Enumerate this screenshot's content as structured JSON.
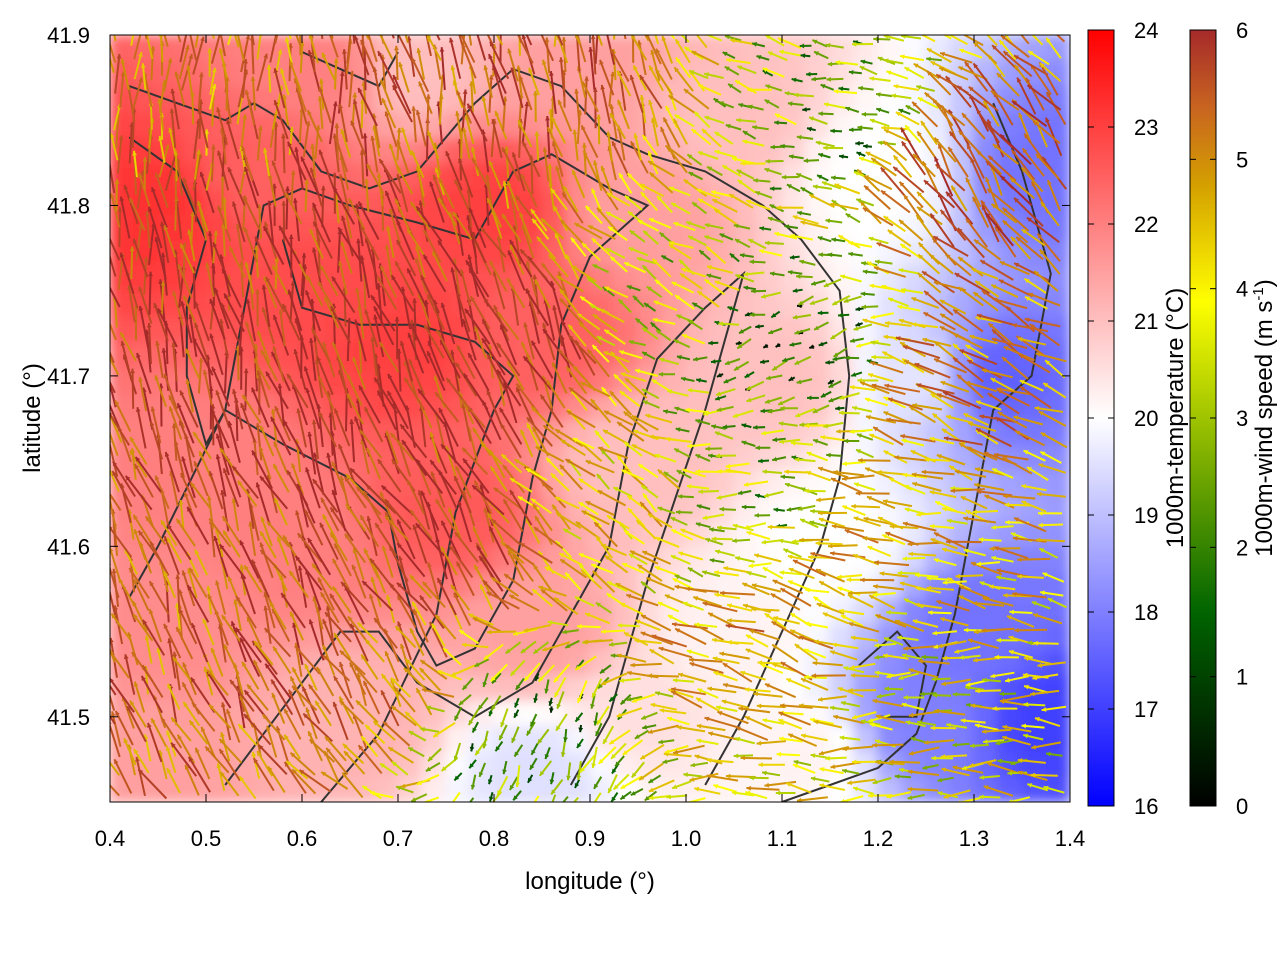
{
  "chart_data": {
    "type": "heatmap",
    "xlabel": "longitude (°)",
    "ylabel": "latitude (°)",
    "xlim": [
      0.4,
      1.4
    ],
    "ylim": [
      41.45,
      41.9
    ],
    "xticks": [
      "0.4",
      "0.5",
      "0.6",
      "0.7",
      "0.8",
      "0.9",
      "1.0",
      "1.1",
      "1.2",
      "1.3",
      "1.4"
    ],
    "yticks": [
      "41.5",
      "41.6",
      "41.7",
      "41.8",
      "41.9"
    ],
    "temperature_colorbar": {
      "label": "1000m-temperature (°C)",
      "range": [
        16,
        24
      ],
      "ticks": [
        "16",
        "17",
        "18",
        "19",
        "20",
        "21",
        "22",
        "23",
        "24"
      ],
      "colors": [
        "#0000ff",
        "#ffffff",
        "#ff0000"
      ]
    },
    "wind_colorbar": {
      "label_main": "1000m-wind speed (m s",
      "label_sup": "-1",
      "label_end": ")",
      "range": [
        0,
        6
      ],
      "ticks": [
        "0",
        "1",
        "2",
        "3",
        "4",
        "5",
        "6"
      ],
      "colors": [
        "#000000",
        "#006400",
        "#7fb000",
        "#ffff00",
        "#d4a000",
        "#c86420",
        "#a52a2a"
      ]
    },
    "temperature_regions": [
      {
        "lon": 0.45,
        "lat": 41.8,
        "temp": 23.2
      },
      {
        "lon": 0.55,
        "lat": 41.82,
        "temp": 22.5
      },
      {
        "lon": 0.62,
        "lat": 41.75,
        "temp": 22.8
      },
      {
        "lon": 0.7,
        "lat": 41.72,
        "temp": 23.0
      },
      {
        "lon": 0.8,
        "lat": 41.8,
        "temp": 23.0
      },
      {
        "lon": 0.85,
        "lat": 41.72,
        "temp": 22.5
      },
      {
        "lon": 0.75,
        "lat": 41.62,
        "temp": 22.6
      },
      {
        "lon": 0.6,
        "lat": 41.6,
        "temp": 22.0
      },
      {
        "lon": 0.5,
        "lat": 41.65,
        "temp": 22.0
      },
      {
        "lon": 0.45,
        "lat": 41.55,
        "temp": 21.8
      },
      {
        "lon": 0.65,
        "lat": 41.5,
        "temp": 21.2
      },
      {
        "lon": 0.85,
        "lat": 41.55,
        "temp": 21.5
      },
      {
        "lon": 0.95,
        "lat": 41.8,
        "temp": 21.5
      },
      {
        "lon": 0.95,
        "lat": 41.65,
        "temp": 21.0
      },
      {
        "lon": 1.05,
        "lat": 41.85,
        "temp": 21.0
      },
      {
        "lon": 1.1,
        "lat": 41.7,
        "temp": 21.0
      },
      {
        "lon": 1.05,
        "lat": 41.55,
        "temp": 20.2
      },
      {
        "lon": 1.15,
        "lat": 41.6,
        "temp": 20.0
      },
      {
        "lon": 1.2,
        "lat": 41.82,
        "temp": 20.0
      },
      {
        "lon": 1.25,
        "lat": 41.7,
        "temp": 19.6
      },
      {
        "lon": 1.3,
        "lat": 41.55,
        "temp": 17.8
      },
      {
        "lon": 1.32,
        "lat": 41.7,
        "temp": 17.5
      },
      {
        "lon": 1.38,
        "lat": 41.82,
        "temp": 17.8
      },
      {
        "lon": 1.38,
        "lat": 41.5,
        "temp": 17.0
      },
      {
        "lon": 1.25,
        "lat": 41.5,
        "temp": 18.0
      },
      {
        "lon": 0.85,
        "lat": 41.47,
        "temp": 19.5
      },
      {
        "lon": 0.95,
        "lat": 41.5,
        "temp": 20.5
      },
      {
        "lon": 1.12,
        "lat": 41.48,
        "temp": 20.2
      },
      {
        "lon": 0.42,
        "lat": 41.48,
        "temp": 21.5
      },
      {
        "lon": 0.62,
        "lat": 41.88,
        "temp": 22.0
      },
      {
        "lon": 0.72,
        "lat": 41.88,
        "temp": 21.0
      },
      {
        "lon": 0.88,
        "lat": 41.88,
        "temp": 21.5
      }
    ],
    "wind_regions": [
      {
        "lon": 0.5,
        "lat": 41.75,
        "speed": 5.5,
        "dir": 100
      },
      {
        "lon": 0.65,
        "lat": 41.7,
        "speed": 5.8,
        "dir": 105
      },
      {
        "lon": 0.8,
        "lat": 41.72,
        "speed": 5.8,
        "dir": 110
      },
      {
        "lon": 0.75,
        "lat": 41.6,
        "speed": 5.5,
        "dir": 120
      },
      {
        "lon": 0.6,
        "lat": 41.55,
        "speed": 5.2,
        "dir": 115
      },
      {
        "lon": 0.85,
        "lat": 41.85,
        "speed": 5.0,
        "dir": 100
      },
      {
        "lon": 0.95,
        "lat": 41.62,
        "speed": 3.5,
        "dir": 140
      },
      {
        "lon": 1.0,
        "lat": 41.75,
        "speed": 2.5,
        "dir": 150
      },
      {
        "lon": 1.1,
        "lat": 41.72,
        "speed": 1.0,
        "dir": 200
      },
      {
        "lon": 1.05,
        "lat": 41.62,
        "speed": 2.0,
        "dir": 180
      },
      {
        "lon": 1.1,
        "lat": 41.55,
        "speed": 4.2,
        "dir": 160
      },
      {
        "lon": 1.22,
        "lat": 41.6,
        "speed": 3.8,
        "dir": 170
      },
      {
        "lon": 1.32,
        "lat": 41.7,
        "speed": 4.5,
        "dir": 155
      },
      {
        "lon": 1.3,
        "lat": 41.82,
        "speed": 5.2,
        "dir": 125
      },
      {
        "lon": 1.25,
        "lat": 41.5,
        "speed": 3.0,
        "dir": 180
      },
      {
        "lon": 0.82,
        "lat": 41.5,
        "speed": 1.5,
        "dir": 250
      },
      {
        "lon": 0.7,
        "lat": 41.52,
        "speed": 4.5,
        "dir": 120
      },
      {
        "lon": 0.45,
        "lat": 41.55,
        "speed": 4.8,
        "dir": 110
      },
      {
        "lon": 0.45,
        "lat": 41.85,
        "speed": 4.5,
        "dir": 90
      },
      {
        "lon": 1.18,
        "lat": 41.85,
        "speed": 1.8,
        "dir": 170
      }
    ],
    "contours": [
      [
        [
          0.42,
          41.87
        ],
        [
          0.47,
          41.86
        ],
        [
          0.52,
          41.85
        ],
        [
          0.55,
          41.86
        ],
        [
          0.58,
          41.85
        ],
        [
          0.62,
          41.82
        ],
        [
          0.67,
          41.81
        ],
        [
          0.72,
          41.82
        ],
        [
          0.78,
          41.86
        ],
        [
          0.82,
          41.88
        ],
        [
          0.87,
          41.87
        ],
        [
          0.92,
          41.84
        ],
        [
          0.96,
          41.83
        ],
        [
          1.02,
          41.82
        ],
        [
          1.08,
          41.8
        ],
        [
          1.12,
          41.78
        ],
        [
          1.16,
          41.75
        ],
        [
          1.17,
          41.7
        ],
        [
          1.16,
          41.64
        ],
        [
          1.14,
          41.6
        ],
        [
          1.1,
          41.55
        ],
        [
          1.06,
          41.5
        ],
        [
          1.02,
          41.46
        ]
      ],
      [
        [
          0.42,
          41.84
        ],
        [
          0.47,
          41.82
        ],
        [
          0.5,
          41.78
        ],
        [
          0.48,
          41.74
        ],
        [
          0.48,
          41.7
        ],
        [
          0.5,
          41.66
        ],
        [
          0.52,
          41.68
        ],
        [
          0.54,
          41.74
        ],
        [
          0.56,
          41.8
        ],
        [
          0.6,
          41.81
        ],
        [
          0.65,
          41.8
        ],
        [
          0.72,
          41.79
        ],
        [
          0.78,
          41.78
        ],
        [
          0.82,
          41.82
        ],
        [
          0.86,
          41.83
        ],
        [
          0.92,
          41.81
        ],
        [
          0.96,
          41.8
        ],
        [
          0.9,
          41.77
        ],
        [
          0.87,
          41.73
        ],
        [
          0.86,
          41.68
        ],
        [
          0.84,
          41.64
        ],
        [
          0.82,
          41.58
        ],
        [
          0.78,
          41.54
        ],
        [
          0.74,
          41.53
        ],
        [
          0.72,
          41.55
        ],
        [
          0.7,
          41.59
        ],
        [
          0.69,
          41.62
        ],
        [
          0.65,
          41.64
        ],
        [
          0.58,
          41.66
        ],
        [
          0.52,
          41.68
        ],
        [
          0.45,
          41.6
        ],
        [
          0.42,
          41.57
        ]
      ],
      [
        [
          0.52,
          41.46
        ],
        [
          0.56,
          41.49
        ],
        [
          0.6,
          41.52
        ],
        [
          0.64,
          41.55
        ],
        [
          0.68,
          41.55
        ],
        [
          0.72,
          41.52
        ],
        [
          0.78,
          41.5
        ],
        [
          0.84,
          41.52
        ],
        [
          0.88,
          41.56
        ],
        [
          0.92,
          41.6
        ],
        [
          0.94,
          41.66
        ],
        [
          0.97,
          41.71
        ],
        [
          1.02,
          41.74
        ],
        [
          1.06,
          41.76
        ],
        [
          1.04,
          41.72
        ],
        [
          1.02,
          41.68
        ],
        [
          0.99,
          41.63
        ],
        [
          0.96,
          41.58
        ],
        [
          0.94,
          41.54
        ],
        [
          0.92,
          41.5
        ],
        [
          0.88,
          41.46
        ]
      ],
      [
        [
          0.62,
          41.45
        ],
        [
          0.68,
          41.49
        ],
        [
          0.74,
          41.56
        ],
        [
          0.76,
          41.62
        ],
        [
          0.8,
          41.68
        ],
        [
          0.82,
          41.7
        ],
        [
          0.78,
          41.72
        ],
        [
          0.72,
          41.73
        ],
        [
          0.66,
          41.73
        ],
        [
          0.6,
          41.74
        ],
        [
          0.58,
          41.78
        ]
      ],
      [
        [
          1.32,
          41.86
        ],
        [
          1.35,
          41.82
        ],
        [
          1.38,
          41.76
        ],
        [
          1.36,
          41.7
        ],
        [
          1.32,
          41.68
        ],
        [
          1.3,
          41.62
        ],
        [
          1.28,
          41.56
        ],
        [
          1.26,
          41.52
        ],
        [
          1.24,
          41.49
        ],
        [
          1.2,
          41.47
        ],
        [
          1.15,
          41.46
        ],
        [
          1.1,
          41.45
        ]
      ],
      [
        [
          1.2,
          41.5
        ],
        [
          1.24,
          41.5
        ],
        [
          1.25,
          41.53
        ],
        [
          1.22,
          41.55
        ],
        [
          1.18,
          41.53
        ]
      ],
      [
        [
          0.6,
          41.89
        ],
        [
          0.64,
          41.88
        ],
        [
          0.68,
          41.87
        ],
        [
          0.7,
          41.89
        ]
      ]
    ]
  }
}
